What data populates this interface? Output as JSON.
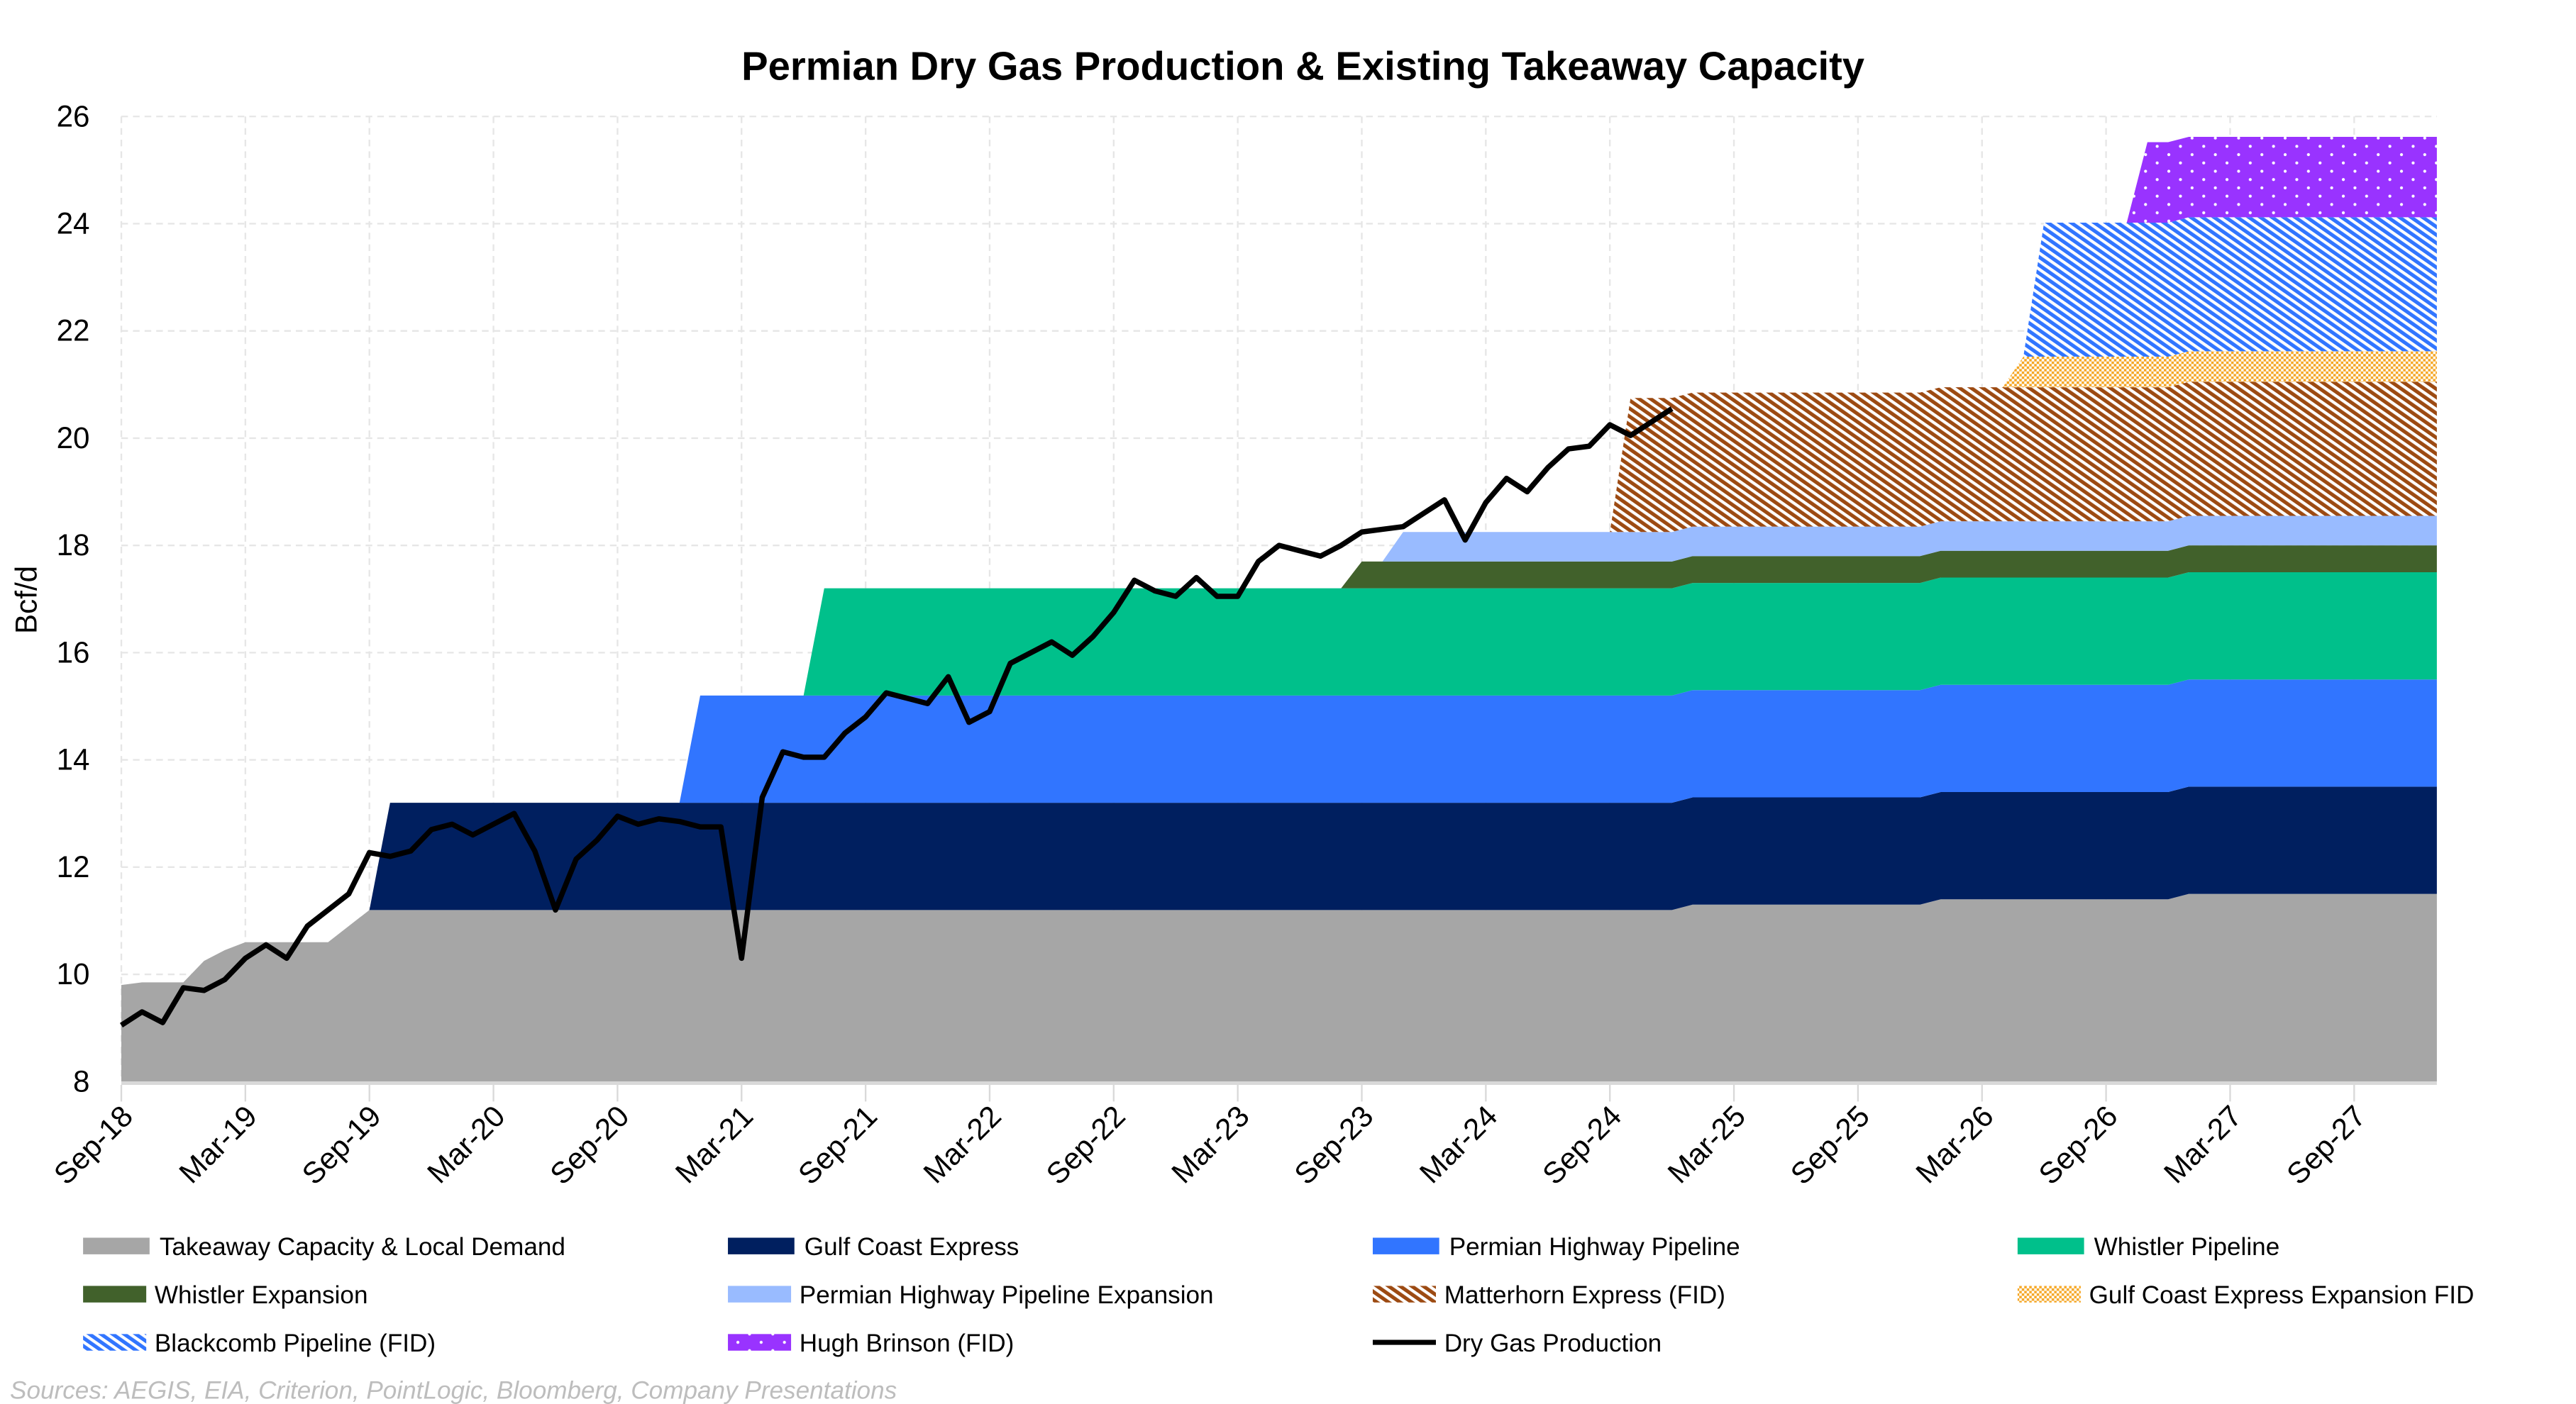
{
  "chart_data": {
    "type": "area",
    "title": "Permian Dry Gas Production & Existing Takeaway Capacity",
    "xlabel": "",
    "ylabel": "Bcf/d",
    "ylim": [
      8,
      26
    ],
    "yticks": [
      8,
      10,
      12,
      14,
      16,
      18,
      20,
      22,
      24,
      26
    ],
    "xrange": [
      "Sep-18",
      "Jan-28"
    ],
    "xticks": [
      "Sep-18",
      "Mar-19",
      "Sep-19",
      "Mar-20",
      "Sep-20",
      "Mar-21",
      "Sep-21",
      "Mar-22",
      "Sep-22",
      "Mar-23",
      "Sep-23",
      "Mar-24",
      "Sep-24",
      "Mar-25",
      "Sep-25",
      "Mar-26",
      "Sep-26",
      "Mar-27",
      "Sep-27"
    ],
    "grid": true,
    "legend_placement": "bottom",
    "stacked": true,
    "base": {
      "name": "Takeaway Capacity & Local Demand",
      "color": "#A6A6A6",
      "points": [
        [
          "Sep-18",
          9.8
        ],
        [
          "Oct-18",
          9.85
        ],
        [
          "Dec-18",
          9.85
        ],
        [
          "Jan-19",
          10.25
        ],
        [
          "Feb-19",
          10.45
        ],
        [
          "Mar-19",
          10.6
        ],
        [
          "Jul-19",
          10.6
        ],
        [
          "Aug-19",
          10.9
        ],
        [
          "Sep-19",
          11.2
        ],
        [
          "Dec-24",
          11.2
        ],
        [
          "Jan-25",
          11.3
        ],
        [
          "Dec-25",
          11.3
        ],
        [
          "Jan-26",
          11.4
        ],
        [
          "Dec-26",
          11.4
        ],
        [
          "Jan-27",
          11.5
        ],
        [
          "Jan-28",
          11.5
        ]
      ]
    },
    "series": [
      {
        "name": "Gulf Coast Express",
        "color": "#001F5F",
        "pattern": "solid",
        "start": "Oct-19",
        "capacity": 2.0
      },
      {
        "name": "Permian Highway Pipeline",
        "color": "#3175FF",
        "pattern": "solid",
        "start": "Jan-21",
        "capacity": 2.0
      },
      {
        "name": "Whistler Pipeline",
        "color": "#00C08B",
        "pattern": "solid",
        "start": "Jul-21",
        "capacity": 2.0
      },
      {
        "name": "Whistler Expansion",
        "color": "#41612B",
        "pattern": "solid",
        "start": "Sep-23",
        "capacity": 0.5
      },
      {
        "name": "Permian Highway Pipeline Expansion",
        "color": "#99BBFF",
        "pattern": "solid",
        "start": "Nov-23",
        "capacity": 0.55
      },
      {
        "name": "Matterhorn Express (FID)",
        "color": "#9C4A12",
        "pattern": "diagonal",
        "start": "Oct-24",
        "capacity": 2.5
      },
      {
        "name": "Gulf Coast Express Expansion FID",
        "color": "#F5A623",
        "pattern": "checker",
        "start": "May-26",
        "capacity": 0.57
      },
      {
        "name": "Blackcomb Pipeline (FID)",
        "color": "#3175FF",
        "pattern": "diagonal",
        "start": "Jun-26",
        "capacity": 2.5
      },
      {
        "name": "Hugh Brinson (FID)",
        "color": "#9933FF",
        "pattern": "dots",
        "start": "Nov-26",
        "capacity": 1.5
      }
    ],
    "line": {
      "name": "Dry Gas Production",
      "color": "#000000",
      "start": "Sep-18",
      "values": [
        9.05,
        9.3,
        9.1,
        9.75,
        9.7,
        9.9,
        10.3,
        10.55,
        10.3,
        10.9,
        11.2,
        11.5,
        12.27,
        12.2,
        12.3,
        12.7,
        12.8,
        12.6,
        12.8,
        13.0,
        12.3,
        11.2,
        12.15,
        12.5,
        12.95,
        12.8,
        12.9,
        12.85,
        12.75,
        12.75,
        10.3,
        13.3,
        14.15,
        14.05,
        14.05,
        14.5,
        14.8,
        15.25,
        15.15,
        15.05,
        15.55,
        14.7,
        14.9,
        15.8,
        16.0,
        16.2,
        15.95,
        16.3,
        16.75,
        17.35,
        17.15,
        17.05,
        17.4,
        17.05,
        17.05,
        17.7,
        18.0,
        17.9,
        17.8,
        18.0,
        18.25,
        18.3,
        18.35,
        18.6,
        18.85,
        18.1,
        18.8,
        19.25,
        19.0,
        19.45,
        19.8,
        19.85,
        20.25,
        20.05,
        20.3,
        20.55
      ]
    },
    "legend_order": [
      "Takeaway Capacity & Local Demand",
      "Gulf Coast Express",
      "Permian Highway Pipeline",
      "Whistler Pipeline",
      "Whistler Expansion",
      "Permian Highway Pipeline Expansion",
      "Matterhorn Express (FID)",
      "Gulf Coast Express Expansion FID",
      "Blackcomb Pipeline (FID)",
      "Hugh Brinson (FID)",
      "Dry Gas Production"
    ],
    "source": "Sources: AEGIS, EIA, Criterion, PointLogic, Bloomberg, Company Presentations"
  }
}
